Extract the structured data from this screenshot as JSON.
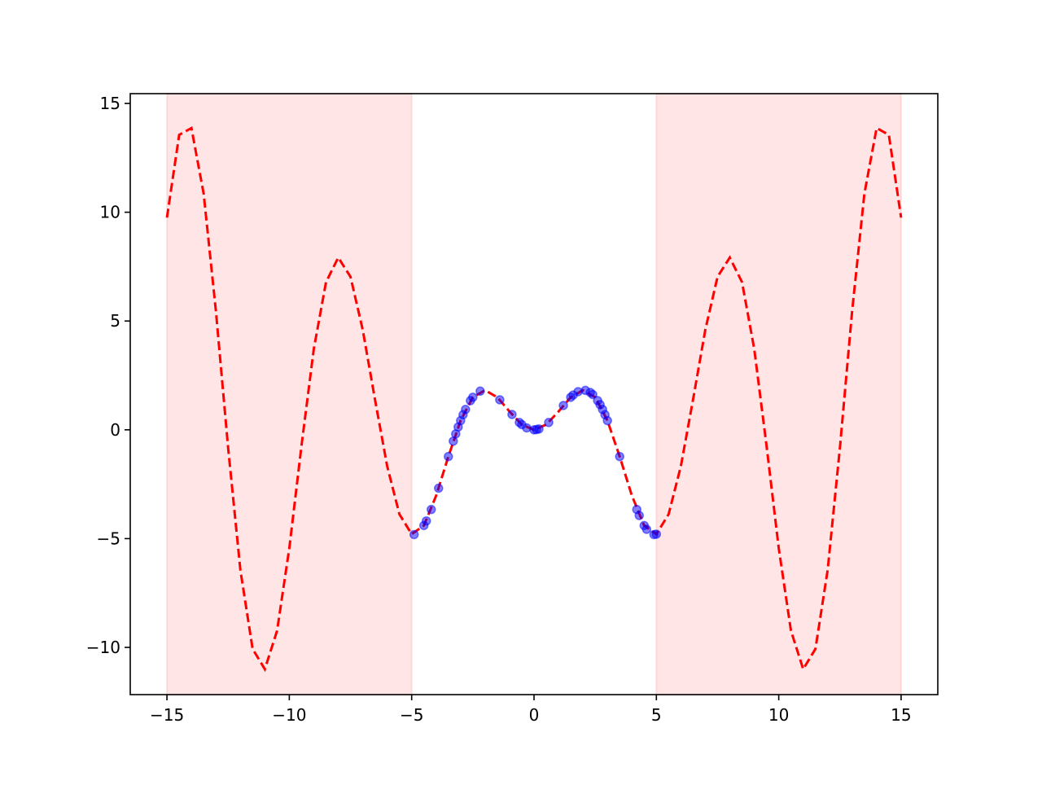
{
  "chart_data": {
    "type": "line",
    "xlim": [
      -16.5,
      16.5
    ],
    "ylim": [
      -12.17,
      15.45
    ],
    "xticks": [
      {
        "value": -15,
        "label": "−15"
      },
      {
        "value": -10,
        "label": "−10"
      },
      {
        "value": -5,
        "label": "−5"
      },
      0,
      5,
      10,
      15
    ],
    "yticks": [
      {
        "value": -10,
        "label": "−10"
      },
      {
        "value": -5,
        "label": "−5"
      },
      0,
      5,
      10,
      15
    ],
    "spans": [
      {
        "from": -15,
        "to": -5
      },
      {
        "from": 5,
        "to": 15
      }
    ],
    "span_color": "#ff0000",
    "series": [
      {
        "type": "line",
        "style": "dashed",
        "color": "#ff0000",
        "x": [
          -15,
          -14.5,
          -14,
          -13.5,
          -13,
          -12.5,
          -12,
          -11.5,
          -11,
          -10.5,
          -10,
          -9.5,
          -9,
          -8.5,
          -8,
          -7.5,
          -7,
          -6.5,
          -6,
          -5.5,
          -5,
          -4.5,
          -4,
          -3.5,
          -3,
          -2.5,
          -2,
          -1.5,
          -1,
          -0.5,
          0,
          0.5,
          1,
          1.5,
          2,
          2.5,
          3,
          3.5,
          4,
          4.5,
          5,
          5.5,
          6,
          6.5,
          7,
          7.5,
          8,
          8.5,
          9,
          9.5,
          10,
          10.5,
          11,
          11.5,
          12,
          12.5,
          13,
          13.5,
          14,
          14.5,
          15
        ],
        "values": [
          9.754,
          13.556,
          13.868,
          10.851,
          5.463,
          -0.829,
          -6.439,
          -10.068,
          -11.0,
          -9.237,
          -5.44,
          -0.714,
          3.709,
          6.787,
          7.915,
          7.035,
          4.599,
          1.398,
          -1.676,
          -3.88,
          -4.795,
          -4.399,
          -3.027,
          -1.228,
          0.423,
          1.496,
          1.819,
          1.496,
          0.841,
          0.24,
          0,
          0.24,
          0.841,
          1.496,
          1.819,
          1.496,
          0.423,
          -1.228,
          -3.027,
          -4.399,
          -4.795,
          -3.88,
          -1.676,
          1.398,
          4.599,
          7.035,
          7.915,
          6.787,
          3.709,
          -0.714,
          -5.44,
          -9.237,
          -11.0,
          -10.068,
          -6.439,
          -0.829,
          5.463,
          10.851,
          13.868,
          13.556,
          9.754
        ]
      },
      {
        "type": "scatter",
        "color": "#0000ff",
        "x": [
          -4.9,
          -4.5,
          -4.4,
          -4.2,
          -3.9,
          -3.5,
          -3.3,
          -3.2,
          -3.1,
          -3.0,
          -2.9,
          -2.8,
          -2.6,
          -2.5,
          -2.2,
          -1.4,
          -0.9,
          -0.6,
          -0.5,
          -0.3,
          0,
          0.1,
          0.2,
          0.6,
          1.2,
          1.5,
          1.6,
          1.8,
          2.1,
          2.3,
          2.4,
          2.6,
          2.7,
          2.8,
          2.9,
          3.0,
          3.5,
          4.2,
          4.3,
          4.5,
          4.6,
          4.9,
          5.0
        ],
        "values": [
          -4.814,
          -4.399,
          -4.187,
          -3.661,
          -2.683,
          -1.228,
          -0.52,
          -0.187,
          0.129,
          0.423,
          0.694,
          0.938,
          1.34,
          1.496,
          1.779,
          1.38,
          0.705,
          0.339,
          0.24,
          0.089,
          0,
          0.01,
          0.04,
          0.339,
          1.118,
          1.496,
          1.599,
          1.753,
          1.813,
          1.715,
          1.621,
          1.34,
          1.157,
          0.938,
          0.694,
          0.423,
          -1.228,
          -3.661,
          -3.94,
          -4.399,
          -4.571,
          -4.814,
          -4.795
        ]
      }
    ]
  }
}
